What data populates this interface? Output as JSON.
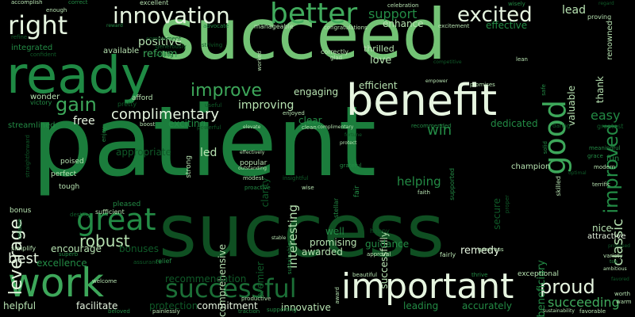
{
  "background": "#000000",
  "palette": {
    "lightest": "#e6f5e0",
    "light": "#b7e2b1",
    "mid_light": "#73c375",
    "mid": "#3da75a",
    "mid_dark": "#238b45",
    "dark": "#1b6e36",
    "darker": "#0f5a28",
    "darkest": "#00441b"
  },
  "words": [
    {
      "text": "patient",
      "color": "#1b7d3c"
    },
    {
      "text": "succeed",
      "color": "#73c375"
    },
    {
      "text": "success",
      "color": "#0f4f22"
    },
    {
      "text": "ready",
      "color": "#1f8a44"
    },
    {
      "text": "benefit",
      "color": "#e6f5e0"
    },
    {
      "text": "important",
      "color": "#e6f5e0"
    },
    {
      "text": "work",
      "color": "#3da75a"
    },
    {
      "text": "successful",
      "color": "#1b6e36"
    },
    {
      "text": "great",
      "color": "#238b45"
    },
    {
      "text": "good",
      "color": "#3da75a"
    },
    {
      "text": "better",
      "color": "#41ab5d"
    },
    {
      "text": "innovation",
      "color": "#e6f5e0"
    },
    {
      "text": "right",
      "color": "#e6f5e0"
    },
    {
      "text": "excited",
      "color": "#e6f5e0"
    },
    {
      "text": "improved",
      "color": "#238b45"
    },
    {
      "text": "improve",
      "color": "#3da75a"
    },
    {
      "text": "gain",
      "color": "#3da75a"
    },
    {
      "text": "leverage",
      "color": "#e6f5e0"
    },
    {
      "text": "proud",
      "color": "#e6f5e0"
    },
    {
      "text": "best",
      "color": "#e6f5e0"
    },
    {
      "text": "robust",
      "color": "#b7e2b1"
    },
    {
      "text": "classic",
      "color": "#b7e2b1"
    },
    {
      "text": "succeeding",
      "color": "#41ab5d"
    },
    {
      "text": "complimentary",
      "color": "#e6f5e0"
    },
    {
      "text": "support",
      "color": "#238b45"
    },
    {
      "text": "lead",
      "color": "#b7e2b1"
    },
    {
      "text": "positive",
      "color": "#b7e2b1"
    },
    {
      "text": "reform",
      "color": "#3da75a"
    },
    {
      "text": "enhance",
      "color": "#b7e2b1"
    },
    {
      "text": "effective",
      "color": "#238b45"
    },
    {
      "text": "love",
      "color": "#b7e2b1"
    },
    {
      "text": "thrilled",
      "color": "#b7e2b1"
    },
    {
      "text": "thank",
      "color": "#b7e2b1"
    },
    {
      "text": "valuable",
      "color": "#b7e2b1"
    },
    {
      "text": "efficient",
      "color": "#b7e2b1"
    },
    {
      "text": "engaging",
      "color": "#b7e2b1"
    },
    {
      "text": "improving",
      "color": "#b7e2b1"
    },
    {
      "text": "free",
      "color": "#e6f5e0"
    },
    {
      "text": "easy",
      "color": "#238b45"
    },
    {
      "text": "win",
      "color": "#238b45"
    },
    {
      "text": "interesting",
      "color": "#b7e2b1"
    },
    {
      "text": "dedicated",
      "color": "#238b45"
    },
    {
      "text": "exciting",
      "color": "#238b45"
    },
    {
      "text": "clear",
      "color": "#238b45"
    },
    {
      "text": "led",
      "color": "#b7e2b1"
    },
    {
      "text": "helping",
      "color": "#238b45"
    },
    {
      "text": "successfully",
      "color": "#b7e2b1"
    },
    {
      "text": "secure",
      "color": "#0f5a28"
    },
    {
      "text": "beneficiary",
      "color": "#238b45"
    },
    {
      "text": "comprehensive",
      "color": "#b7e2b1"
    },
    {
      "text": "premier",
      "color": "#0f5a28"
    },
    {
      "text": "well",
      "color": "#238b45"
    },
    {
      "text": "promising",
      "color": "#b7e2b1"
    },
    {
      "text": "awarded",
      "color": "#b7e2b1"
    },
    {
      "text": "guidance",
      "color": "#238b45"
    },
    {
      "text": "remedy",
      "color": "#e6f5e0"
    },
    {
      "text": "nice",
      "color": "#b7e2b1"
    },
    {
      "text": "attractive",
      "color": "#e6f5e0"
    },
    {
      "text": "encourage",
      "color": "#b7e2b1"
    },
    {
      "text": "bonuses",
      "color": "#0f5a28"
    },
    {
      "text": "excellence",
      "color": "#238b45"
    },
    {
      "text": "recommendation",
      "color": "#0f5a28"
    },
    {
      "text": "commitment",
      "color": "#e6f5e0"
    },
    {
      "text": "facilitate",
      "color": "#e6f5e0"
    },
    {
      "text": "protection",
      "color": "#0f5a28"
    },
    {
      "text": "innovative",
      "color": "#b7e2b1"
    },
    {
      "text": "leading",
      "color": "#238b45"
    },
    {
      "text": "accurately",
      "color": "#238b45"
    },
    {
      "text": "helpful",
      "color": "#b7e2b1"
    },
    {
      "text": "appropriate",
      "color": "#0f5a28"
    },
    {
      "text": "champion",
      "color": "#b7e2b1"
    },
    {
      "text": "exceptional",
      "color": "#b7e2b1"
    },
    {
      "text": "fun",
      "color": "#238b45"
    },
    {
      "text": "perfect",
      "color": "#b7e2b1"
    },
    {
      "text": "tough",
      "color": "#b7e2b1"
    },
    {
      "text": "bonus",
      "color": "#b7e2b1"
    },
    {
      "text": "pleased",
      "color": "#238b45"
    },
    {
      "text": "sufficient",
      "color": "#b7e2b1"
    },
    {
      "text": "popular",
      "color": "#b7e2b1"
    },
    {
      "text": "clarity",
      "color": "#0f5a28"
    },
    {
      "text": "proactive",
      "color": "#238b45"
    },
    {
      "text": "outstanding",
      "color": "#b7e2b1"
    },
    {
      "text": "modest",
      "color": "#b7e2b1"
    },
    {
      "text": "effectively",
      "color": "#b7e2b1"
    },
    {
      "text": "wise",
      "color": "#b7e2b1"
    },
    {
      "text": "faith",
      "color": "#b7e2b1"
    },
    {
      "text": "fair",
      "color": "#238b45"
    },
    {
      "text": "grateful",
      "color": "#238b45"
    },
    {
      "text": "protect",
      "color": "#b7e2b1"
    },
    {
      "text": "fortune",
      "color": "#0f5a28"
    },
    {
      "text": "supported",
      "color": "#238b45"
    },
    {
      "text": "favorable",
      "color": "#b7e2b1"
    },
    {
      "text": "worth",
      "color": "#b7e2b1"
    },
    {
      "text": "variety",
      "color": "#b7e2b1"
    },
    {
      "text": "ambitious",
      "color": "#b7e2b1"
    },
    {
      "text": "top",
      "color": "#238b45"
    },
    {
      "text": "promised",
      "color": "#0f5a28"
    },
    {
      "text": "favored",
      "color": "#0f5a28"
    },
    {
      "text": "sustainability",
      "color": "#b7e2b1"
    },
    {
      "text": "terrific",
      "color": "#b7e2b1"
    },
    {
      "text": "modern",
      "color": "#b7e2b1"
    },
    {
      "text": "skilled",
      "color": "#b7e2b1"
    },
    {
      "text": "meaningful",
      "color": "#238b45"
    },
    {
      "text": "grace",
      "color": "#238b45"
    },
    {
      "text": "greatest",
      "color": "#0f5a28"
    },
    {
      "text": "optimal",
      "color": "#0f5a28"
    },
    {
      "text": "proving",
      "color": "#b7e2b1"
    },
    {
      "text": "regard",
      "color": "#0f5a28"
    },
    {
      "text": "renowned",
      "color": "#b7e2b1"
    },
    {
      "text": "wisely",
      "color": "#238b45"
    },
    {
      "text": "celebration",
      "color": "#b7e2b1"
    },
    {
      "text": "congratulations",
      "color": "#b7e2b1"
    },
    {
      "text": "excitement",
      "color": "#b7e2b1"
    },
    {
      "text": "correctly",
      "color": "#b7e2b1"
    },
    {
      "text": "glad",
      "color": "#b7e2b1"
    },
    {
      "text": "competitive",
      "color": "#0f5a28"
    },
    {
      "text": "empower",
      "color": "#b7e2b1"
    },
    {
      "text": "promises",
      "color": "#b7e2b1"
    },
    {
      "text": "lean",
      "color": "#b7e2b1"
    },
    {
      "text": "worked",
      "color": "#b7e2b1"
    },
    {
      "text": "manageable",
      "color": "#b7e2b1"
    },
    {
      "text": "advocate",
      "color": "#238b45"
    },
    {
      "text": "striving",
      "color": "#0f5a28"
    },
    {
      "text": "complement",
      "color": "#0f5a28"
    },
    {
      "text": "generously",
      "color": "#0f5a28"
    },
    {
      "text": "willing",
      "color": "#0f5a28"
    },
    {
      "text": "integrated",
      "color": "#238b45"
    },
    {
      "text": "available",
      "color": "#b7e2b1"
    },
    {
      "text": "reward",
      "color": "#238b45"
    },
    {
      "text": "refine",
      "color": "#0f5a28"
    },
    {
      "text": "confident",
      "color": "#0f5a28"
    },
    {
      "text": "accomplish",
      "color": "#b7e2b1"
    },
    {
      "text": "enough",
      "color": "#b7e2b1"
    },
    {
      "text": "correct",
      "color": "#238b45"
    },
    {
      "text": "excellent",
      "color": "#b7e2b1"
    },
    {
      "text": "wonder",
      "color": "#b7e2b1"
    },
    {
      "text": "victory",
      "color": "#238b45"
    },
    {
      "text": "pretty",
      "color": "#0f5a28"
    },
    {
      "text": "afford",
      "color": "#b7e2b1"
    },
    {
      "text": "useful",
      "color": "#0f5a28"
    },
    {
      "text": "boost",
      "color": "#b7e2b1"
    },
    {
      "text": "elevate",
      "color": "#b7e2b1"
    },
    {
      "text": "powerful",
      "color": "#0f5a28"
    },
    {
      "text": "enjoy",
      "color": "#238b45"
    },
    {
      "text": "enjoyed",
      "color": "#b7e2b1"
    },
    {
      "text": "clean",
      "color": "#b7e2b1"
    },
    {
      "text": "complimentary",
      "color": "#b7e2b1"
    },
    {
      "text": "recommended",
      "color": "#238b45"
    },
    {
      "text": "daring",
      "color": "#0f5a28"
    },
    {
      "text": "safe",
      "color": "#238b45"
    },
    {
      "text": "solid",
      "color": "#238b45"
    },
    {
      "text": "streamlined",
      "color": "#238b45"
    },
    {
      "text": "straightforward",
      "color": "#0f5a28"
    },
    {
      "text": "poised",
      "color": "#b7e2b1"
    },
    {
      "text": "strong",
      "color": "#b7e2b1"
    },
    {
      "text": "insightful",
      "color": "#0f5a28"
    },
    {
      "text": "stellar",
      "color": "#238b45"
    },
    {
      "text": "proper",
      "color": "#0f5a28"
    },
    {
      "text": "simplify",
      "color": "#b7e2b1"
    },
    {
      "text": "reliable",
      "color": "#238b45"
    },
    {
      "text": "destiny",
      "color": "#0f5a28"
    },
    {
      "text": "superb",
      "color": "#238b45"
    },
    {
      "text": "assurance",
      "color": "#0f5a28"
    },
    {
      "text": "relief",
      "color": "#238b45"
    },
    {
      "text": "stable",
      "color": "#b7e2b1"
    },
    {
      "text": "sustainable",
      "color": "#238b45"
    },
    {
      "text": "approval",
      "color": "#b7e2b1"
    },
    {
      "text": "fairly",
      "color": "#b7e2b1"
    },
    {
      "text": "generous",
      "color": "#b7e2b1"
    },
    {
      "text": "happy",
      "color": "#0f5a28"
    },
    {
      "text": "welcome",
      "color": "#b7e2b1"
    },
    {
      "text": "beloved",
      "color": "#238b45"
    },
    {
      "text": "painlessly",
      "color": "#b7e2b1"
    },
    {
      "text": "traction",
      "color": "#238b45"
    },
    {
      "text": "productive",
      "color": "#b7e2b1"
    },
    {
      "text": "beautiful",
      "color": "#b7e2b1"
    },
    {
      "text": "thrive",
      "color": "#238b45"
    },
    {
      "text": "award",
      "color": "#b7e2b1"
    },
    {
      "text": "supporting",
      "color": "#238b45"
    },
    {
      "text": "warm",
      "color": "#b7e2b1"
    }
  ]
}
